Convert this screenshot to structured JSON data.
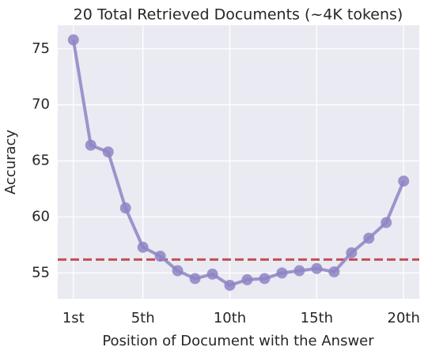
{
  "chart_data": {
    "type": "line",
    "title": "20 Total Retrieved Documents (~4K tokens)",
    "x_label": "Position of Document with the Answer",
    "y_label": "Accuracy",
    "x": [
      1,
      2,
      3,
      4,
      5,
      6,
      7,
      8,
      9,
      10,
      11,
      12,
      13,
      14,
      15,
      16,
      17,
      18,
      19,
      20
    ],
    "series": [
      {
        "color": "#8f84c4",
        "values": [
          75.8,
          66.4,
          65.8,
          60.8,
          57.3,
          56.5,
          55.2,
          54.5,
          54.9,
          53.9,
          54.4,
          54.5,
          55.0,
          55.2,
          55.4,
          55.1,
          56.8,
          58.1,
          59.5,
          63.2
        ]
      }
    ],
    "reference_line": {
      "value": 56.2,
      "color": "#c44e52",
      "style": "dashed"
    },
    "xlim": [
      0.1,
      20.9
    ],
    "ylim": [
      52.7,
      77.1
    ],
    "xticks": [
      {
        "value": 1,
        "label": "1st"
      },
      {
        "value": 5,
        "label": "5th"
      },
      {
        "value": 10,
        "label": "10th"
      },
      {
        "value": 15,
        "label": "15th"
      },
      {
        "value": 20,
        "label": "20th"
      }
    ],
    "yticks": [
      55,
      60,
      65,
      70,
      75
    ],
    "grid": true
  }
}
